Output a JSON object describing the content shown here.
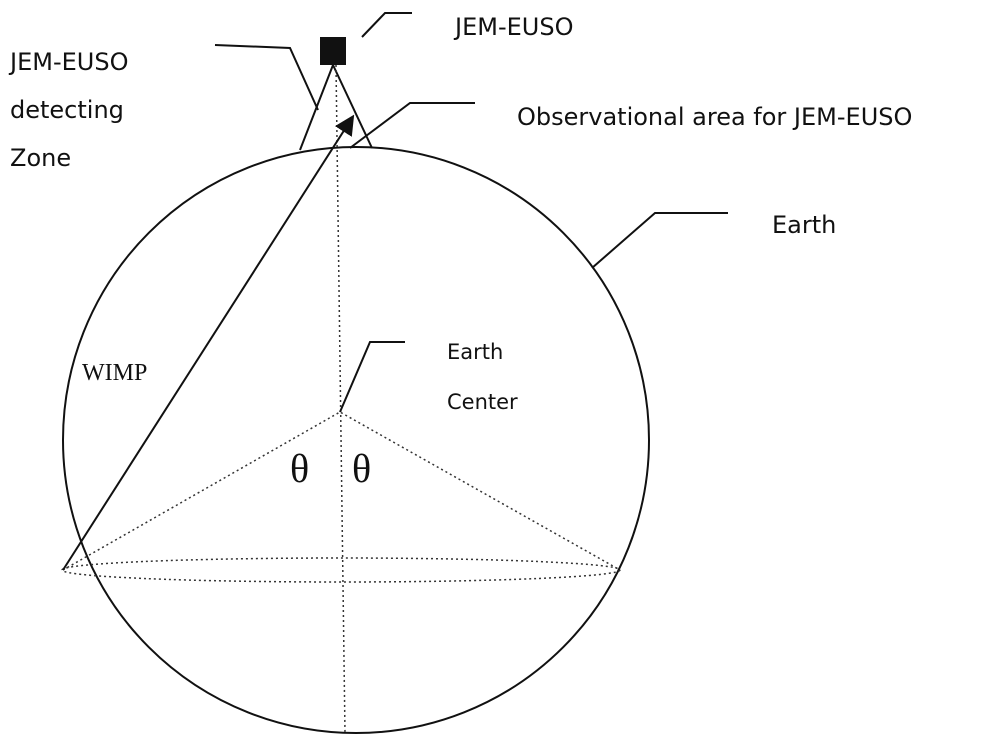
{
  "labels": {
    "jem_euso": "JEM-EUSO",
    "detecting_zone": [
      "JEM-EUSO",
      "detecting",
      "Zone"
    ],
    "observational_area": "Observational area for JEM-EUSO",
    "earth": "Earth",
    "earth_center": [
      "Earth",
      "Center"
    ],
    "wimp": "WIMP",
    "theta_left": "θ",
    "theta_right": "θ"
  }
}
